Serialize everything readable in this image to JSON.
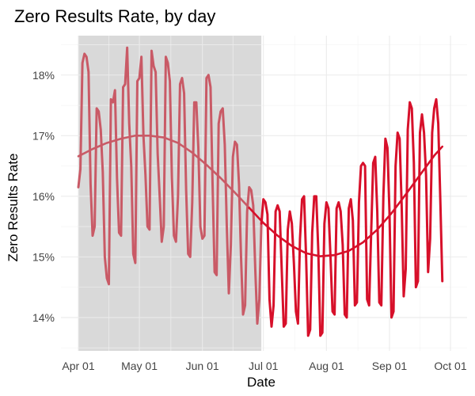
{
  "chart_data": {
    "type": "line",
    "title": "Zero Results Rate, by day",
    "xlabel": "Date",
    "ylabel": "Zero Results Rate",
    "x_range": [
      "2016-04-01",
      "2016-10-01"
    ],
    "y_range": [
      13.45,
      18.65
    ],
    "grid": true,
    "legend": "none",
    "shaded_region": {
      "start": "2016-04-01",
      "end": "2016-06-30",
      "color": "#d9d9d9"
    },
    "x_ticks": [
      {
        "date": "2016-04-01",
        "label": "Apr 01"
      },
      {
        "date": "2016-05-01",
        "label": "May 01"
      },
      {
        "date": "2016-06-01",
        "label": "Jun 01"
      },
      {
        "date": "2016-07-01",
        "label": "Jul 01"
      },
      {
        "date": "2016-08-01",
        "label": "Aug 01"
      },
      {
        "date": "2016-09-01",
        "label": "Sep 01"
      },
      {
        "date": "2016-10-01",
        "label": "Oct 01"
      }
    ],
    "y_ticks": [
      {
        "value": 14,
        "label": "14%"
      },
      {
        "value": 15,
        "label": "15%"
      },
      {
        "value": 16,
        "label": "16%"
      },
      {
        "value": 17,
        "label": "17%"
      },
      {
        "value": 18,
        "label": "18%"
      }
    ],
    "series": [
      {
        "kind": "daily",
        "color_before": "#c95a66",
        "color_after": "#d7102a",
        "points": [
          [
            "2016-04-01",
            16.15
          ],
          [
            "2016-04-02",
            16.45
          ],
          [
            "2016-04-03",
            18.2
          ],
          [
            "2016-04-04",
            18.35
          ],
          [
            "2016-04-05",
            18.3
          ],
          [
            "2016-04-06",
            18.05
          ],
          [
            "2016-04-07",
            16.2
          ],
          [
            "2016-04-08",
            15.35
          ],
          [
            "2016-04-09",
            15.5
          ],
          [
            "2016-04-10",
            17.45
          ],
          [
            "2016-04-11",
            17.4
          ],
          [
            "2016-04-12",
            17.1
          ],
          [
            "2016-04-13",
            16.4
          ],
          [
            "2016-04-14",
            15.0
          ],
          [
            "2016-04-15",
            14.65
          ],
          [
            "2016-04-16",
            14.55
          ],
          [
            "2016-04-17",
            17.6
          ],
          [
            "2016-04-18",
            17.55
          ],
          [
            "2016-04-19",
            17.75
          ],
          [
            "2016-04-20",
            16.3
          ],
          [
            "2016-04-21",
            15.4
          ],
          [
            "2016-04-22",
            15.35
          ],
          [
            "2016-04-23",
            17.8
          ],
          [
            "2016-04-24",
            17.85
          ],
          [
            "2016-04-25",
            18.45
          ],
          [
            "2016-04-26",
            17.2
          ],
          [
            "2016-04-27",
            16.5
          ],
          [
            "2016-04-28",
            15.05
          ],
          [
            "2016-04-29",
            14.9
          ],
          [
            "2016-04-30",
            17.9
          ],
          [
            "2016-05-01",
            17.95
          ],
          [
            "2016-05-02",
            18.3
          ],
          [
            "2016-05-03",
            17.0
          ],
          [
            "2016-05-04",
            16.35
          ],
          [
            "2016-05-05",
            15.5
          ],
          [
            "2016-05-06",
            15.45
          ],
          [
            "2016-05-07",
            18.4
          ],
          [
            "2016-05-08",
            18.15
          ],
          [
            "2016-05-09",
            18.05
          ],
          [
            "2016-05-10",
            16.7
          ],
          [
            "2016-05-11",
            16.0
          ],
          [
            "2016-05-12",
            15.25
          ],
          [
            "2016-05-13",
            15.5
          ],
          [
            "2016-05-14",
            18.3
          ],
          [
            "2016-05-15",
            18.2
          ],
          [
            "2016-05-16",
            17.9
          ],
          [
            "2016-05-17",
            16.3
          ],
          [
            "2016-05-18",
            15.35
          ],
          [
            "2016-05-19",
            15.25
          ],
          [
            "2016-05-20",
            16.0
          ],
          [
            "2016-05-21",
            17.85
          ],
          [
            "2016-05-22",
            17.95
          ],
          [
            "2016-05-23",
            17.7
          ],
          [
            "2016-05-24",
            16.1
          ],
          [
            "2016-05-25",
            15.05
          ],
          [
            "2016-05-26",
            15.0
          ],
          [
            "2016-05-27",
            15.9
          ],
          [
            "2016-05-28",
            17.55
          ],
          [
            "2016-05-29",
            17.55
          ],
          [
            "2016-05-30",
            16.8
          ],
          [
            "2016-05-31",
            15.5
          ],
          [
            "2016-06-01",
            15.3
          ],
          [
            "2016-06-02",
            15.35
          ],
          [
            "2016-06-03",
            17.95
          ],
          [
            "2016-06-04",
            18.0
          ],
          [
            "2016-06-05",
            17.8
          ],
          [
            "2016-06-06",
            16.2
          ],
          [
            "2016-06-07",
            14.75
          ],
          [
            "2016-06-08",
            14.7
          ],
          [
            "2016-06-09",
            17.2
          ],
          [
            "2016-06-10",
            17.4
          ],
          [
            "2016-06-11",
            17.45
          ],
          [
            "2016-06-12",
            16.85
          ],
          [
            "2016-06-13",
            15.5
          ],
          [
            "2016-06-14",
            14.4
          ],
          [
            "2016-06-15",
            15.2
          ],
          [
            "2016-06-16",
            16.65
          ],
          [
            "2016-06-17",
            16.9
          ],
          [
            "2016-06-18",
            16.85
          ],
          [
            "2016-06-19",
            16.2
          ],
          [
            "2016-06-20",
            15.0
          ],
          [
            "2016-06-21",
            14.05
          ],
          [
            "2016-06-22",
            14.2
          ],
          [
            "2016-06-23",
            15.75
          ],
          [
            "2016-06-24",
            16.15
          ],
          [
            "2016-06-25",
            16.1
          ],
          [
            "2016-06-26",
            15.85
          ],
          [
            "2016-06-27",
            14.8
          ],
          [
            "2016-06-28",
            13.9
          ],
          [
            "2016-06-29",
            14.3
          ],
          [
            "2016-06-30",
            15.55
          ],
          [
            "2016-07-01",
            15.95
          ],
          [
            "2016-07-02",
            15.9
          ],
          [
            "2016-07-03",
            15.7
          ],
          [
            "2016-07-04",
            14.3
          ],
          [
            "2016-07-05",
            13.85
          ],
          [
            "2016-07-06",
            14.2
          ],
          [
            "2016-07-07",
            15.75
          ],
          [
            "2016-07-08",
            15.85
          ],
          [
            "2016-07-09",
            15.75
          ],
          [
            "2016-07-10",
            14.8
          ],
          [
            "2016-07-11",
            13.85
          ],
          [
            "2016-07-12",
            13.9
          ],
          [
            "2016-07-13",
            15.45
          ],
          [
            "2016-07-14",
            15.75
          ],
          [
            "2016-07-15",
            15.55
          ],
          [
            "2016-07-16",
            14.9
          ],
          [
            "2016-07-17",
            14.1
          ],
          [
            "2016-07-18",
            13.9
          ],
          [
            "2016-07-19",
            15.3
          ],
          [
            "2016-07-20",
            15.95
          ],
          [
            "2016-07-21",
            16.0
          ],
          [
            "2016-07-22",
            15.0
          ],
          [
            "2016-07-23",
            13.7
          ],
          [
            "2016-07-24",
            13.8
          ],
          [
            "2016-07-25",
            15.4
          ],
          [
            "2016-07-26",
            16.0
          ],
          [
            "2016-07-27",
            16.0
          ],
          [
            "2016-07-28",
            15.1
          ],
          [
            "2016-07-29",
            13.7
          ],
          [
            "2016-07-30",
            13.75
          ],
          [
            "2016-07-31",
            15.55
          ],
          [
            "2016-08-01",
            15.9
          ],
          [
            "2016-08-02",
            15.8
          ],
          [
            "2016-08-03",
            15.0
          ],
          [
            "2016-08-04",
            14.1
          ],
          [
            "2016-08-05",
            14.05
          ],
          [
            "2016-08-06",
            15.8
          ],
          [
            "2016-08-07",
            15.9
          ],
          [
            "2016-08-08",
            15.75
          ],
          [
            "2016-08-09",
            15.2
          ],
          [
            "2016-08-10",
            14.05
          ],
          [
            "2016-08-11",
            14.0
          ],
          [
            "2016-08-12",
            15.8
          ],
          [
            "2016-08-13",
            15.95
          ],
          [
            "2016-08-14",
            15.6
          ],
          [
            "2016-08-15",
            14.2
          ],
          [
            "2016-08-16",
            14.25
          ],
          [
            "2016-08-17",
            15.9
          ],
          [
            "2016-08-18",
            16.5
          ],
          [
            "2016-08-19",
            16.55
          ],
          [
            "2016-08-20",
            16.5
          ],
          [
            "2016-08-21",
            14.3
          ],
          [
            "2016-08-22",
            14.2
          ],
          [
            "2016-08-23",
            15.4
          ],
          [
            "2016-08-24",
            16.55
          ],
          [
            "2016-08-25",
            16.65
          ],
          [
            "2016-08-26",
            15.75
          ],
          [
            "2016-08-27",
            14.25
          ],
          [
            "2016-08-28",
            14.2
          ],
          [
            "2016-08-29",
            16.0
          ],
          [
            "2016-08-30",
            16.95
          ],
          [
            "2016-08-31",
            16.8
          ],
          [
            "2016-09-01",
            15.75
          ],
          [
            "2016-09-02",
            14.0
          ],
          [
            "2016-09-03",
            14.1
          ],
          [
            "2016-09-04",
            16.5
          ],
          [
            "2016-09-05",
            17.05
          ],
          [
            "2016-09-06",
            16.95
          ],
          [
            "2016-09-07",
            15.85
          ],
          [
            "2016-09-08",
            14.35
          ],
          [
            "2016-09-09",
            14.8
          ],
          [
            "2016-09-10",
            17.1
          ],
          [
            "2016-09-11",
            17.55
          ],
          [
            "2016-09-12",
            17.45
          ],
          [
            "2016-09-13",
            16.55
          ],
          [
            "2016-09-14",
            14.5
          ],
          [
            "2016-09-15",
            14.6
          ],
          [
            "2016-09-16",
            17.05
          ],
          [
            "2016-09-17",
            17.35
          ],
          [
            "2016-09-18",
            17.05
          ],
          [
            "2016-09-19",
            16.35
          ],
          [
            "2016-09-20",
            14.75
          ],
          [
            "2016-09-21",
            15.3
          ],
          [
            "2016-09-22",
            17.05
          ],
          [
            "2016-09-23",
            17.45
          ],
          [
            "2016-09-24",
            17.6
          ],
          [
            "2016-09-25",
            17.2
          ],
          [
            "2016-09-26",
            15.95
          ],
          [
            "2016-09-27",
            14.6
          ]
        ]
      },
      {
        "kind": "smoothed",
        "color_before": "#c95a66",
        "color_after": "#d7102a",
        "points": [
          [
            "2016-04-01",
            16.66
          ],
          [
            "2016-04-08",
            16.78
          ],
          [
            "2016-04-15",
            16.88
          ],
          [
            "2016-04-22",
            16.95
          ],
          [
            "2016-04-29",
            17.0
          ],
          [
            "2016-05-06",
            17.0
          ],
          [
            "2016-05-13",
            16.97
          ],
          [
            "2016-05-20",
            16.88
          ],
          [
            "2016-05-27",
            16.72
          ],
          [
            "2016-06-03",
            16.52
          ],
          [
            "2016-06-10",
            16.3
          ],
          [
            "2016-06-17",
            16.06
          ],
          [
            "2016-06-24",
            15.81
          ],
          [
            "2016-07-01",
            15.56
          ],
          [
            "2016-07-08",
            15.35
          ],
          [
            "2016-07-15",
            15.18
          ],
          [
            "2016-07-22",
            15.06
          ],
          [
            "2016-07-29",
            15.01
          ],
          [
            "2016-08-05",
            15.03
          ],
          [
            "2016-08-12",
            15.1
          ],
          [
            "2016-08-19",
            15.24
          ],
          [
            "2016-08-26",
            15.45
          ],
          [
            "2016-09-02",
            15.72
          ],
          [
            "2016-09-09",
            16.03
          ],
          [
            "2016-09-16",
            16.35
          ],
          [
            "2016-09-23",
            16.67
          ],
          [
            "2016-09-27",
            16.82
          ]
        ]
      }
    ]
  }
}
